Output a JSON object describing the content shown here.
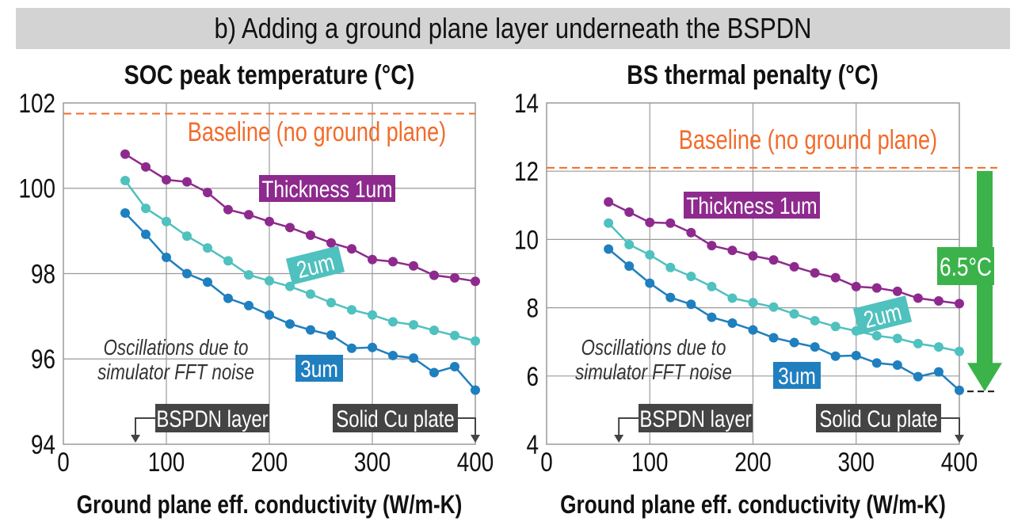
{
  "banner_title": "b) Adding a ground plane layer underneath the BSPDN",
  "chart_data": [
    {
      "type": "line",
      "title": "SOC peak temperature (°C)",
      "xlabel": "Ground plane eff. conductivity (W/m-K)",
      "ylabel": "",
      "xlim": [
        0,
        400
      ],
      "ylim": [
        94,
        102
      ],
      "xticks": [
        0,
        100,
        200,
        300,
        400
      ],
      "yticks": [
        94,
        96,
        98,
        100,
        102
      ],
      "grid": true,
      "x": [
        60,
        80,
        100,
        120,
        140,
        160,
        180,
        200,
        220,
        240,
        260,
        280,
        300,
        320,
        340,
        360,
        380,
        400
      ],
      "series": [
        {
          "name": "Thickness 1um",
          "color": "#8e2a8e",
          "values": [
            100.8,
            100.5,
            100.2,
            100.15,
            99.9,
            99.5,
            99.38,
            99.22,
            99.08,
            98.9,
            98.72,
            98.58,
            98.33,
            98.28,
            98.18,
            97.96,
            97.9,
            97.82
          ]
        },
        {
          "name": "2um",
          "color": "#4fc1be",
          "values": [
            100.18,
            99.53,
            99.22,
            98.88,
            98.6,
            98.3,
            97.97,
            97.83,
            97.7,
            97.52,
            97.32,
            97.15,
            97.03,
            96.87,
            96.8,
            96.67,
            96.55,
            96.42
          ]
        },
        {
          "name": "3um",
          "color": "#1f7fbf",
          "values": [
            99.42,
            98.92,
            98.38,
            98.0,
            97.8,
            97.42,
            97.25,
            97.03,
            96.82,
            96.68,
            96.56,
            96.25,
            96.27,
            96.08,
            96.02,
            95.68,
            95.82,
            95.27
          ]
        }
      ],
      "baseline": {
        "value": 101.75,
        "label": "Baseline (no ground plane)",
        "color": "#f26b2a"
      },
      "annotations": {
        "oscillation": [
          "Oscillations due to",
          "simulator FFT noise"
        ],
        "bspdn_label": "BSPDN layer",
        "bspdn_x": 70,
        "cu_label": "Solid Cu plate",
        "cu_x": 400
      }
    },
    {
      "type": "line",
      "title": "BS thermal penalty (°C)",
      "xlabel": "Ground plane eff. conductivity (W/m-K)",
      "ylabel": "",
      "xlim": [
        0,
        400
      ],
      "ylim": [
        4,
        14
      ],
      "xticks": [
        0,
        100,
        200,
        300,
        400
      ],
      "yticks": [
        4,
        6,
        8,
        10,
        12,
        14
      ],
      "grid": true,
      "x": [
        60,
        80,
        100,
        120,
        140,
        160,
        180,
        200,
        220,
        240,
        260,
        280,
        300,
        320,
        340,
        360,
        380,
        400
      ],
      "series": [
        {
          "name": "Thickness 1um",
          "color": "#8e2a8e",
          "values": [
            11.1,
            10.8,
            10.5,
            10.48,
            10.2,
            9.82,
            9.68,
            9.52,
            9.4,
            9.2,
            9.02,
            8.88,
            8.62,
            8.58,
            8.48,
            8.28,
            8.2,
            8.12
          ]
        },
        {
          "name": "2um",
          "color": "#4fc1be",
          "values": [
            10.48,
            9.85,
            9.55,
            9.18,
            8.92,
            8.62,
            8.28,
            8.15,
            8.02,
            7.82,
            7.62,
            7.45,
            7.32,
            7.18,
            7.1,
            6.95,
            6.85,
            6.72
          ]
        },
        {
          "name": "3um",
          "color": "#1f7fbf",
          "values": [
            9.72,
            9.22,
            8.72,
            8.3,
            8.1,
            7.72,
            7.55,
            7.35,
            7.12,
            6.98,
            6.85,
            6.58,
            6.6,
            6.38,
            6.32,
            5.98,
            6.12,
            5.58
          ]
        }
      ],
      "baseline": {
        "value": 12.1,
        "label": "Baseline (no ground plane)",
        "color": "#f26b2a"
      },
      "annotations": {
        "oscillation": [
          "Oscillations due to",
          "simulator FFT noise"
        ],
        "bspdn_label": "BSPDN layer",
        "bspdn_x": 70,
        "cu_label": "Solid Cu plate",
        "cu_x": 400,
        "penalty_arrow": {
          "from": 12.1,
          "to": 5.55,
          "label": "6.5°C",
          "color": "#3bb34a"
        }
      }
    }
  ]
}
